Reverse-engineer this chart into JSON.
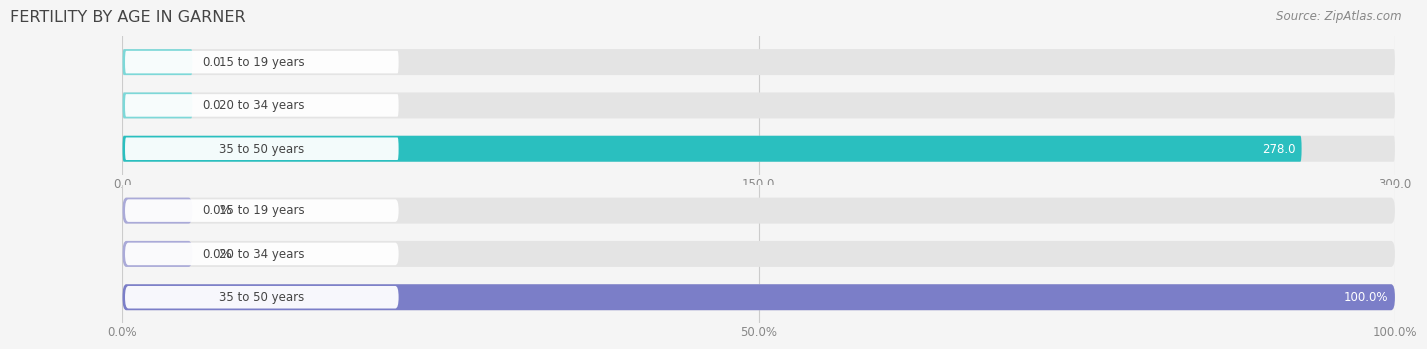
{
  "title": "FERTILITY BY AGE IN GARNER",
  "source": "Source: ZipAtlas.com",
  "background_color": "#f5f5f5",
  "top_chart": {
    "categories": [
      "15 to 19 years",
      "20 to 34 years",
      "35 to 50 years"
    ],
    "values": [
      0.0,
      0.0,
      278.0
    ],
    "bar_color": "#2abfbf",
    "bar_color_stub": "#7dd8d8",
    "bar_bg_color": "#e4e4e4",
    "xlim_max": 300,
    "xticks": [
      0.0,
      150.0,
      300.0
    ],
    "xtick_labels": [
      "0.0",
      "150.0",
      "300.0"
    ]
  },
  "bottom_chart": {
    "categories": [
      "15 to 19 years",
      "20 to 34 years",
      "35 to 50 years"
    ],
    "values": [
      0.0,
      0.0,
      100.0
    ],
    "bar_color": "#7b7ec8",
    "bar_color_stub": "#aaaad8",
    "bar_bg_color": "#e4e4e4",
    "xlim_max": 100,
    "xticks": [
      0.0,
      50.0,
      100.0
    ],
    "xtick_labels": [
      "0.0%",
      "50.0%",
      "100.0%"
    ]
  },
  "label_fontsize": 8.5,
  "tick_fontsize": 8.5,
  "title_fontsize": 11.5,
  "source_fontsize": 8.5,
  "title_color": "#444444",
  "tick_color": "#888888",
  "source_color": "#888888",
  "label_text_color": "#444444",
  "value_label_color_inside": "#ffffff",
  "value_label_color_outside": "#444444"
}
